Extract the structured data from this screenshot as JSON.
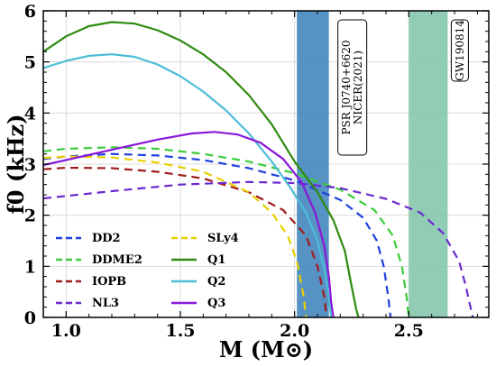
{
  "chart_data": {
    "type": "line",
    "xlabel": "M (M⊙)",
    "ylabel": "f0 (kHz)",
    "xlim": [
      0.9,
      2.85
    ],
    "ylim": [
      0,
      6
    ],
    "xticks": [
      "1.0",
      "1.5",
      "2.0",
      "2.5"
    ],
    "xtick_values": [
      1.0,
      1.5,
      2.0,
      2.5
    ],
    "yticks": [
      "0",
      "1",
      "2",
      "3",
      "4",
      "5",
      "6"
    ],
    "ytick_values": [
      0,
      1,
      2,
      3,
      4,
      5,
      6
    ],
    "grid": true,
    "legend_position": "lower-left",
    "bands": [
      {
        "label_lines": [
          "PSR J0740+6620",
          "NICER(2021)"
        ],
        "x_range": [
          2.01,
          2.15
        ],
        "color": "#3a7fba"
      },
      {
        "label_lines": [
          "GW190814"
        ],
        "x_range": [
          2.5,
          2.67
        ],
        "color": "#7ec4a8"
      }
    ],
    "series": [
      {
        "name": "DD2",
        "color": "#1f3fe0",
        "dash": "dashed",
        "x": [
          0.9,
          1.0,
          1.2,
          1.4,
          1.6,
          1.8,
          2.0,
          2.2,
          2.3,
          2.36,
          2.39,
          2.41,
          2.42
        ],
        "y": [
          3.1,
          3.15,
          3.2,
          3.17,
          3.08,
          2.92,
          2.68,
          2.3,
          1.95,
          1.5,
          1.0,
          0.4,
          0.0
        ]
      },
      {
        "name": "DDME2",
        "color": "#3ccc3c",
        "dash": "dashed",
        "x": [
          0.9,
          1.0,
          1.2,
          1.4,
          1.6,
          1.8,
          2.0,
          2.2,
          2.35,
          2.43,
          2.47,
          2.49,
          2.5
        ],
        "y": [
          3.25,
          3.3,
          3.33,
          3.3,
          3.2,
          3.05,
          2.82,
          2.5,
          2.1,
          1.6,
          1.0,
          0.4,
          0.0
        ]
      },
      {
        "name": "IOPB",
        "color": "#a01c1c",
        "dash": "dashed",
        "x": [
          0.9,
          1.0,
          1.2,
          1.4,
          1.6,
          1.8,
          1.95,
          2.05,
          2.1,
          2.13,
          2.14
        ],
        "y": [
          2.9,
          2.93,
          2.92,
          2.85,
          2.72,
          2.45,
          2.1,
          1.6,
          1.0,
          0.4,
          0.0
        ]
      },
      {
        "name": "NL3",
        "color": "#6a2ad0",
        "dash": "dashed",
        "x": [
          0.9,
          1.2,
          1.5,
          1.8,
          2.0,
          2.2,
          2.4,
          2.55,
          2.65,
          2.72,
          2.75,
          2.77,
          2.78
        ],
        "y": [
          2.33,
          2.47,
          2.6,
          2.65,
          2.63,
          2.53,
          2.32,
          2.05,
          1.65,
          1.1,
          0.6,
          0.2,
          0.0
        ]
      },
      {
        "name": "SLy4",
        "color": "#e8d000",
        "dash": "dashed",
        "x": [
          0.9,
          1.0,
          1.2,
          1.4,
          1.6,
          1.8,
          1.9,
          1.97,
          2.01,
          2.04,
          2.05
        ],
        "y": [
          3.12,
          3.15,
          3.13,
          3.03,
          2.85,
          2.45,
          2.05,
          1.6,
          1.1,
          0.4,
          0.0
        ]
      },
      {
        "name": "Q1",
        "color": "#2e8a10",
        "dash": "solid",
        "x": [
          0.9,
          1.0,
          1.1,
          1.2,
          1.3,
          1.4,
          1.5,
          1.6,
          1.7,
          1.8,
          1.9,
          2.0,
          2.1,
          2.17,
          2.22,
          2.25,
          2.27,
          2.28
        ],
        "y": [
          5.2,
          5.5,
          5.7,
          5.78,
          5.75,
          5.62,
          5.42,
          5.15,
          4.8,
          4.35,
          3.78,
          3.05,
          2.45,
          1.9,
          1.3,
          0.6,
          0.15,
          0.0
        ]
      },
      {
        "name": "Q2",
        "color": "#4cbcd8",
        "dash": "solid",
        "x": [
          0.9,
          1.0,
          1.1,
          1.2,
          1.3,
          1.4,
          1.5,
          1.6,
          1.7,
          1.8,
          1.9,
          1.98,
          2.05,
          2.1,
          2.13,
          2.15,
          2.16
        ],
        "y": [
          4.88,
          5.02,
          5.12,
          5.15,
          5.1,
          4.95,
          4.72,
          4.42,
          4.05,
          3.6,
          3.05,
          2.55,
          2.05,
          1.5,
          0.95,
          0.4,
          0.0
        ]
      },
      {
        "name": "Q3",
        "color": "#8a18d8",
        "dash": "solid",
        "x": [
          0.9,
          1.0,
          1.2,
          1.4,
          1.55,
          1.65,
          1.75,
          1.85,
          1.95,
          2.03,
          2.09,
          2.13,
          2.15,
          2.16,
          2.17
        ],
        "y": [
          2.98,
          3.08,
          3.28,
          3.48,
          3.6,
          3.63,
          3.58,
          3.42,
          3.1,
          2.65,
          2.05,
          1.4,
          0.8,
          0.3,
          0.0
        ]
      }
    ]
  }
}
